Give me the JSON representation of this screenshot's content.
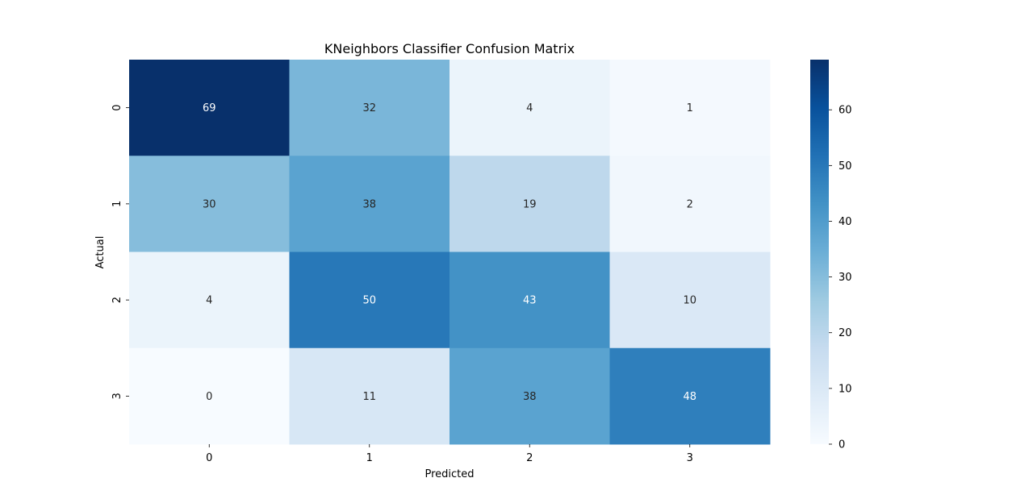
{
  "chart_data": {
    "type": "heatmap",
    "title": "KNeighbors Classifier Confusion Matrix",
    "xlabel": "Predicted",
    "ylabel": "Actual",
    "x_categories": [
      "0",
      "1",
      "2",
      "3"
    ],
    "y_categories": [
      "0",
      "1",
      "2",
      "3"
    ],
    "values": [
      [
        69,
        32,
        4,
        1
      ],
      [
        30,
        38,
        19,
        2
      ],
      [
        4,
        50,
        43,
        10
      ],
      [
        0,
        11,
        38,
        48
      ]
    ],
    "colormap": "Blues",
    "vmin": 0,
    "vmax": 69,
    "colorbar_ticks": [
      0,
      10,
      20,
      30,
      40,
      50,
      60
    ],
    "annotate": true
  }
}
